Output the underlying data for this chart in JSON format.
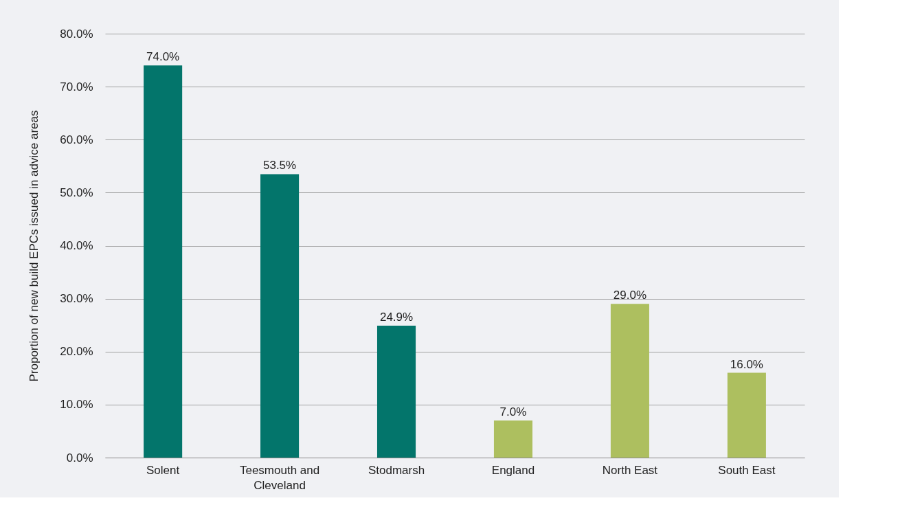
{
  "chart_data": {
    "type": "bar",
    "ylabel": "Proportion of new build EPCs issued in advice areas",
    "categories": [
      "Solent",
      "Teesmouth and Cleveland",
      "Stodmarsh",
      "England",
      "North East",
      "South East"
    ],
    "values": [
      74.0,
      53.5,
      24.9,
      7.0,
      29.0,
      16.0
    ],
    "colors": [
      "#03756b",
      "#03756b",
      "#03756b",
      "#adbf5f",
      "#adbf5f",
      "#adbf5f"
    ],
    "value_labels": [
      "74.0%",
      "53.5%",
      "24.9%",
      "7.0%",
      "29.0%",
      "16.0%"
    ],
    "ylim": [
      0,
      80
    ],
    "yticks": [
      {
        "value": 0,
        "label": "0.0%"
      },
      {
        "value": 10,
        "label": "10.0%"
      },
      {
        "value": 20,
        "label": "20.0%"
      },
      {
        "value": 30,
        "label": "30.0%"
      },
      {
        "value": 40,
        "label": "40.0%"
      },
      {
        "value": 50,
        "label": "50.0%"
      },
      {
        "value": 60,
        "label": "60.0%"
      },
      {
        "value": 70,
        "label": "70.0%"
      },
      {
        "value": 80,
        "label": "80.0%"
      }
    ],
    "grid": "y",
    "legend": false
  }
}
